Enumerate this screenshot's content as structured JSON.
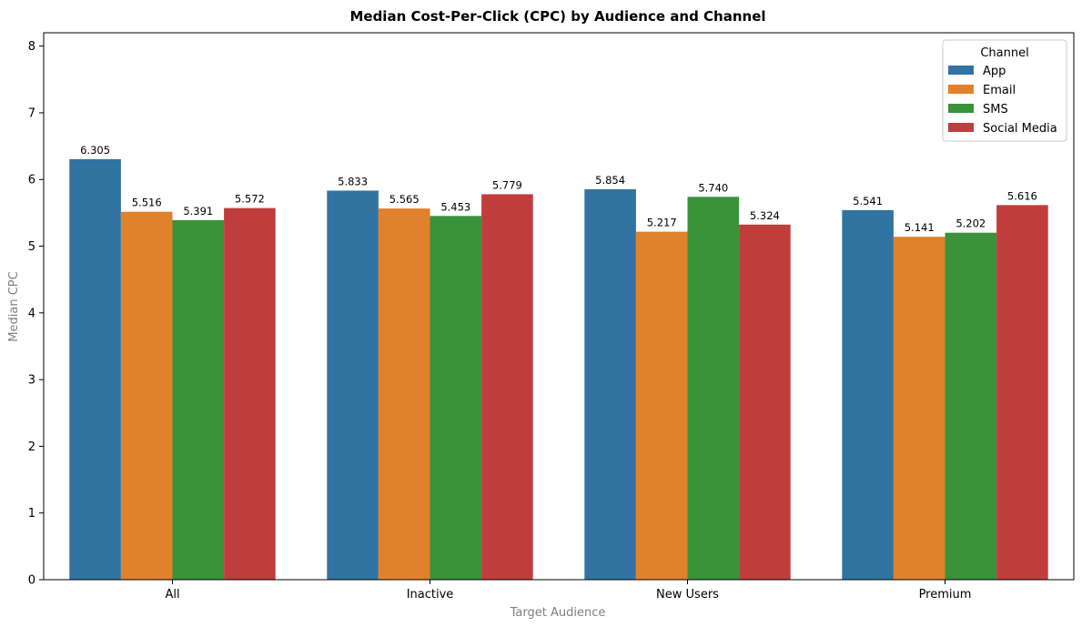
{
  "chart_data": {
    "type": "bar",
    "title": "Median Cost-Per-Click (CPC) by Audience and Channel",
    "xlabel": "Target Audience",
    "ylabel": "Median CPC",
    "categories": [
      "All",
      "Inactive",
      "New Users",
      "Premium"
    ],
    "ylim": [
      0,
      8.2
    ],
    "yticks": [
      "0",
      "1",
      "2",
      "3",
      "4",
      "5",
      "6",
      "7",
      "8"
    ],
    "legend": {
      "title": "Channel",
      "placement": "top-right"
    },
    "series": [
      {
        "name": "App",
        "color": "#3274a1",
        "values": [
          6.305,
          5.833,
          5.854,
          5.541
        ],
        "labels": [
          "6.305",
          "5.833",
          "5.854",
          "5.541"
        ]
      },
      {
        "name": "Email",
        "color": "#e1812c",
        "values": [
          5.516,
          5.565,
          5.217,
          5.141
        ],
        "labels": [
          "5.516",
          "5.565",
          "5.217",
          "5.141"
        ]
      },
      {
        "name": "SMS",
        "color": "#3a923a",
        "values": [
          5.391,
          5.453,
          5.74,
          5.202
        ],
        "labels": [
          "5.391",
          "5.453",
          "5.740",
          "5.202"
        ]
      },
      {
        "name": "Social Media",
        "color": "#c03d3e",
        "values": [
          5.572,
          5.779,
          5.324,
          5.616
        ],
        "labels": [
          "5.572",
          "5.779",
          "5.324",
          "5.616"
        ]
      }
    ]
  }
}
